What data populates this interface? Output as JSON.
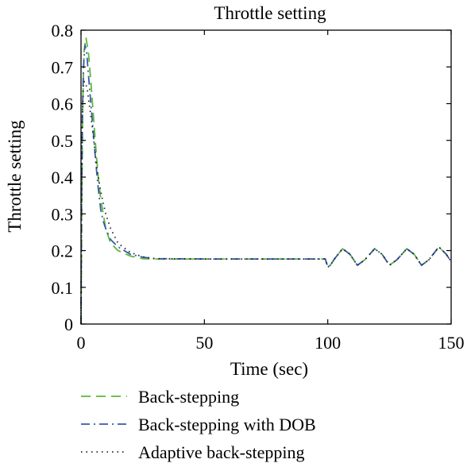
{
  "chart_data": {
    "type": "line",
    "title": "Throttle setting",
    "xlabel": "Time (sec)",
    "ylabel": "Throttle setting",
    "xlim": [
      0,
      150
    ],
    "ylim": [
      0,
      0.8
    ],
    "x_ticks": [
      "0",
      "50",
      "100",
      "150"
    ],
    "y_ticks": [
      "0",
      "0.1",
      "0.2",
      "0.3",
      "0.4",
      "0.5",
      "0.6",
      "0.7",
      "0.8"
    ],
    "grid": false,
    "legend_position": "below",
    "series": [
      {
        "name": "Back-stepping",
        "color": "#5cb83c",
        "dash": "dashed",
        "points": [
          [
            0,
            0
          ],
          [
            0.3,
            0.3
          ],
          [
            0.7,
            0.6
          ],
          [
            1.2,
            0.74
          ],
          [
            2,
            0.78
          ],
          [
            3,
            0.74
          ],
          [
            4,
            0.66
          ],
          [
            5,
            0.57
          ],
          [
            6,
            0.48
          ],
          [
            7,
            0.4
          ],
          [
            8,
            0.34
          ],
          [
            9,
            0.3
          ],
          [
            10,
            0.26
          ],
          [
            12,
            0.22
          ],
          [
            15,
            0.2
          ],
          [
            20,
            0.185
          ],
          [
            25,
            0.178
          ],
          [
            30,
            0.177
          ],
          [
            50,
            0.177
          ],
          [
            75,
            0.177
          ],
          [
            99,
            0.177
          ],
          [
            100,
            0.155
          ],
          [
            101,
            0.16
          ],
          [
            103,
            0.18
          ],
          [
            106,
            0.205
          ],
          [
            109,
            0.19
          ],
          [
            112,
            0.16
          ],
          [
            115,
            0.175
          ],
          [
            119,
            0.205
          ],
          [
            122,
            0.19
          ],
          [
            125,
            0.16
          ],
          [
            128,
            0.175
          ],
          [
            132,
            0.205
          ],
          [
            135,
            0.19
          ],
          [
            138,
            0.16
          ],
          [
            141,
            0.175
          ],
          [
            145,
            0.21
          ],
          [
            148,
            0.19
          ],
          [
            150,
            0.17
          ]
        ]
      },
      {
        "name": "Back-stepping with DOB",
        "color": "#3a5aa8",
        "dash": "dashdot",
        "points": [
          [
            0,
            0
          ],
          [
            0.2,
            0.3
          ],
          [
            0.5,
            0.55
          ],
          [
            1,
            0.7
          ],
          [
            1.6,
            0.76
          ],
          [
            2.3,
            0.74
          ],
          [
            3,
            0.68
          ],
          [
            4,
            0.6
          ],
          [
            5,
            0.52
          ],
          [
            6,
            0.44
          ],
          [
            7,
            0.37
          ],
          [
            8,
            0.31
          ],
          [
            9,
            0.28
          ],
          [
            10,
            0.26
          ],
          [
            12,
            0.23
          ],
          [
            15,
            0.21
          ],
          [
            20,
            0.19
          ],
          [
            25,
            0.182
          ],
          [
            30,
            0.178
          ],
          [
            50,
            0.177
          ],
          [
            75,
            0.177
          ],
          [
            99,
            0.177
          ],
          [
            100,
            0.155
          ],
          [
            101,
            0.16
          ],
          [
            103,
            0.18
          ],
          [
            106,
            0.205
          ],
          [
            109,
            0.19
          ],
          [
            112,
            0.16
          ],
          [
            115,
            0.175
          ],
          [
            119,
            0.205
          ],
          [
            122,
            0.19
          ],
          [
            125,
            0.16
          ],
          [
            128,
            0.175
          ],
          [
            132,
            0.205
          ],
          [
            135,
            0.19
          ],
          [
            138,
            0.16
          ],
          [
            141,
            0.175
          ],
          [
            145,
            0.21
          ],
          [
            148,
            0.19
          ],
          [
            150,
            0.17
          ]
        ]
      },
      {
        "name": "Adaptive back-stepping",
        "color": "#222222",
        "dash": "dotted",
        "points": [
          [
            0,
            0
          ],
          [
            0.2,
            0.3
          ],
          [
            0.5,
            0.55
          ],
          [
            1,
            0.66
          ],
          [
            1.6,
            0.66
          ],
          [
            2.5,
            0.64
          ],
          [
            3.5,
            0.59
          ],
          [
            4.5,
            0.54
          ],
          [
            5.5,
            0.48
          ],
          [
            6.5,
            0.42
          ],
          [
            8,
            0.36
          ],
          [
            10,
            0.3
          ],
          [
            12,
            0.26
          ],
          [
            15,
            0.22
          ],
          [
            20,
            0.195
          ],
          [
            25,
            0.183
          ],
          [
            30,
            0.178
          ],
          [
            50,
            0.177
          ],
          [
            75,
            0.177
          ],
          [
            99,
            0.177
          ],
          [
            100,
            0.155
          ],
          [
            101,
            0.16
          ],
          [
            103,
            0.18
          ],
          [
            106,
            0.205
          ],
          [
            109,
            0.19
          ],
          [
            112,
            0.16
          ],
          [
            115,
            0.175
          ],
          [
            119,
            0.205
          ],
          [
            122,
            0.19
          ],
          [
            125,
            0.16
          ],
          [
            128,
            0.175
          ],
          [
            132,
            0.205
          ],
          [
            135,
            0.19
          ],
          [
            138,
            0.16
          ],
          [
            141,
            0.175
          ],
          [
            145,
            0.21
          ],
          [
            148,
            0.19
          ],
          [
            150,
            0.17
          ]
        ]
      }
    ]
  }
}
